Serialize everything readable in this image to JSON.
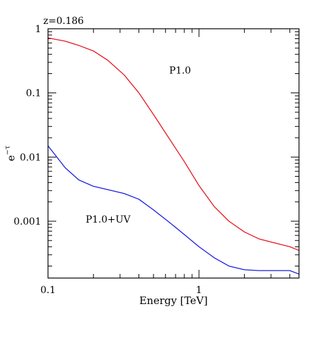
{
  "chart_data": {
    "type": "line",
    "title": "z=0.186",
    "xlabel": "Energy [TeV]",
    "ylabel": "e",
    "ylabel_sup": "−τ",
    "xscale": "log",
    "yscale": "log",
    "xlim": [
      0.1,
      4.6
    ],
    "ylim": [
      0.00013,
      1
    ],
    "x_ticks": [
      {
        "value": 0.1,
        "label": "0.1"
      },
      {
        "value": 1,
        "label": "1"
      }
    ],
    "y_ticks": [
      {
        "value": 1,
        "label": "1"
      },
      {
        "value": 0.1,
        "label": "0.1"
      },
      {
        "value": 0.01,
        "label": "0.01"
      },
      {
        "value": 0.001,
        "label": "0.001"
      }
    ],
    "series": [
      {
        "name": "P1.0",
        "color": "#e8141e",
        "x": [
          0.1,
          0.13,
          0.16,
          0.2,
          0.25,
          0.32,
          0.4,
          0.5,
          0.63,
          0.8,
          1.0,
          1.26,
          1.58,
          2.0,
          2.5,
          3.16,
          4.0,
          4.6
        ],
        "y": [
          0.72,
          0.64,
          0.55,
          0.45,
          0.32,
          0.19,
          0.1,
          0.046,
          0.02,
          0.0085,
          0.0036,
          0.0017,
          0.001,
          0.00068,
          0.00053,
          0.00046,
          0.0004,
          0.00035
        ]
      },
      {
        "name": "P1.0+UV",
        "color": "#1a1ae0",
        "x": [
          0.1,
          0.13,
          0.16,
          0.2,
          0.25,
          0.32,
          0.4,
          0.5,
          0.63,
          0.8,
          1.0,
          1.26,
          1.58,
          2.0,
          2.5,
          3.16,
          4.0,
          4.6
        ],
        "y": [
          0.015,
          0.0068,
          0.0044,
          0.0035,
          0.0031,
          0.0027,
          0.0022,
          0.0015,
          0.00098,
          0.00062,
          0.0004,
          0.00027,
          0.0002,
          0.000175,
          0.00017,
          0.00017,
          0.00017,
          0.00015
        ]
      }
    ],
    "annotations": [
      {
        "text": "P1.0",
        "color": "#e8141e",
        "x": 0.75,
        "y": 0.2
      },
      {
        "text": "P1.0+UV",
        "color": "#1a1ae0",
        "x": 0.25,
        "y": 0.00095
      }
    ]
  }
}
